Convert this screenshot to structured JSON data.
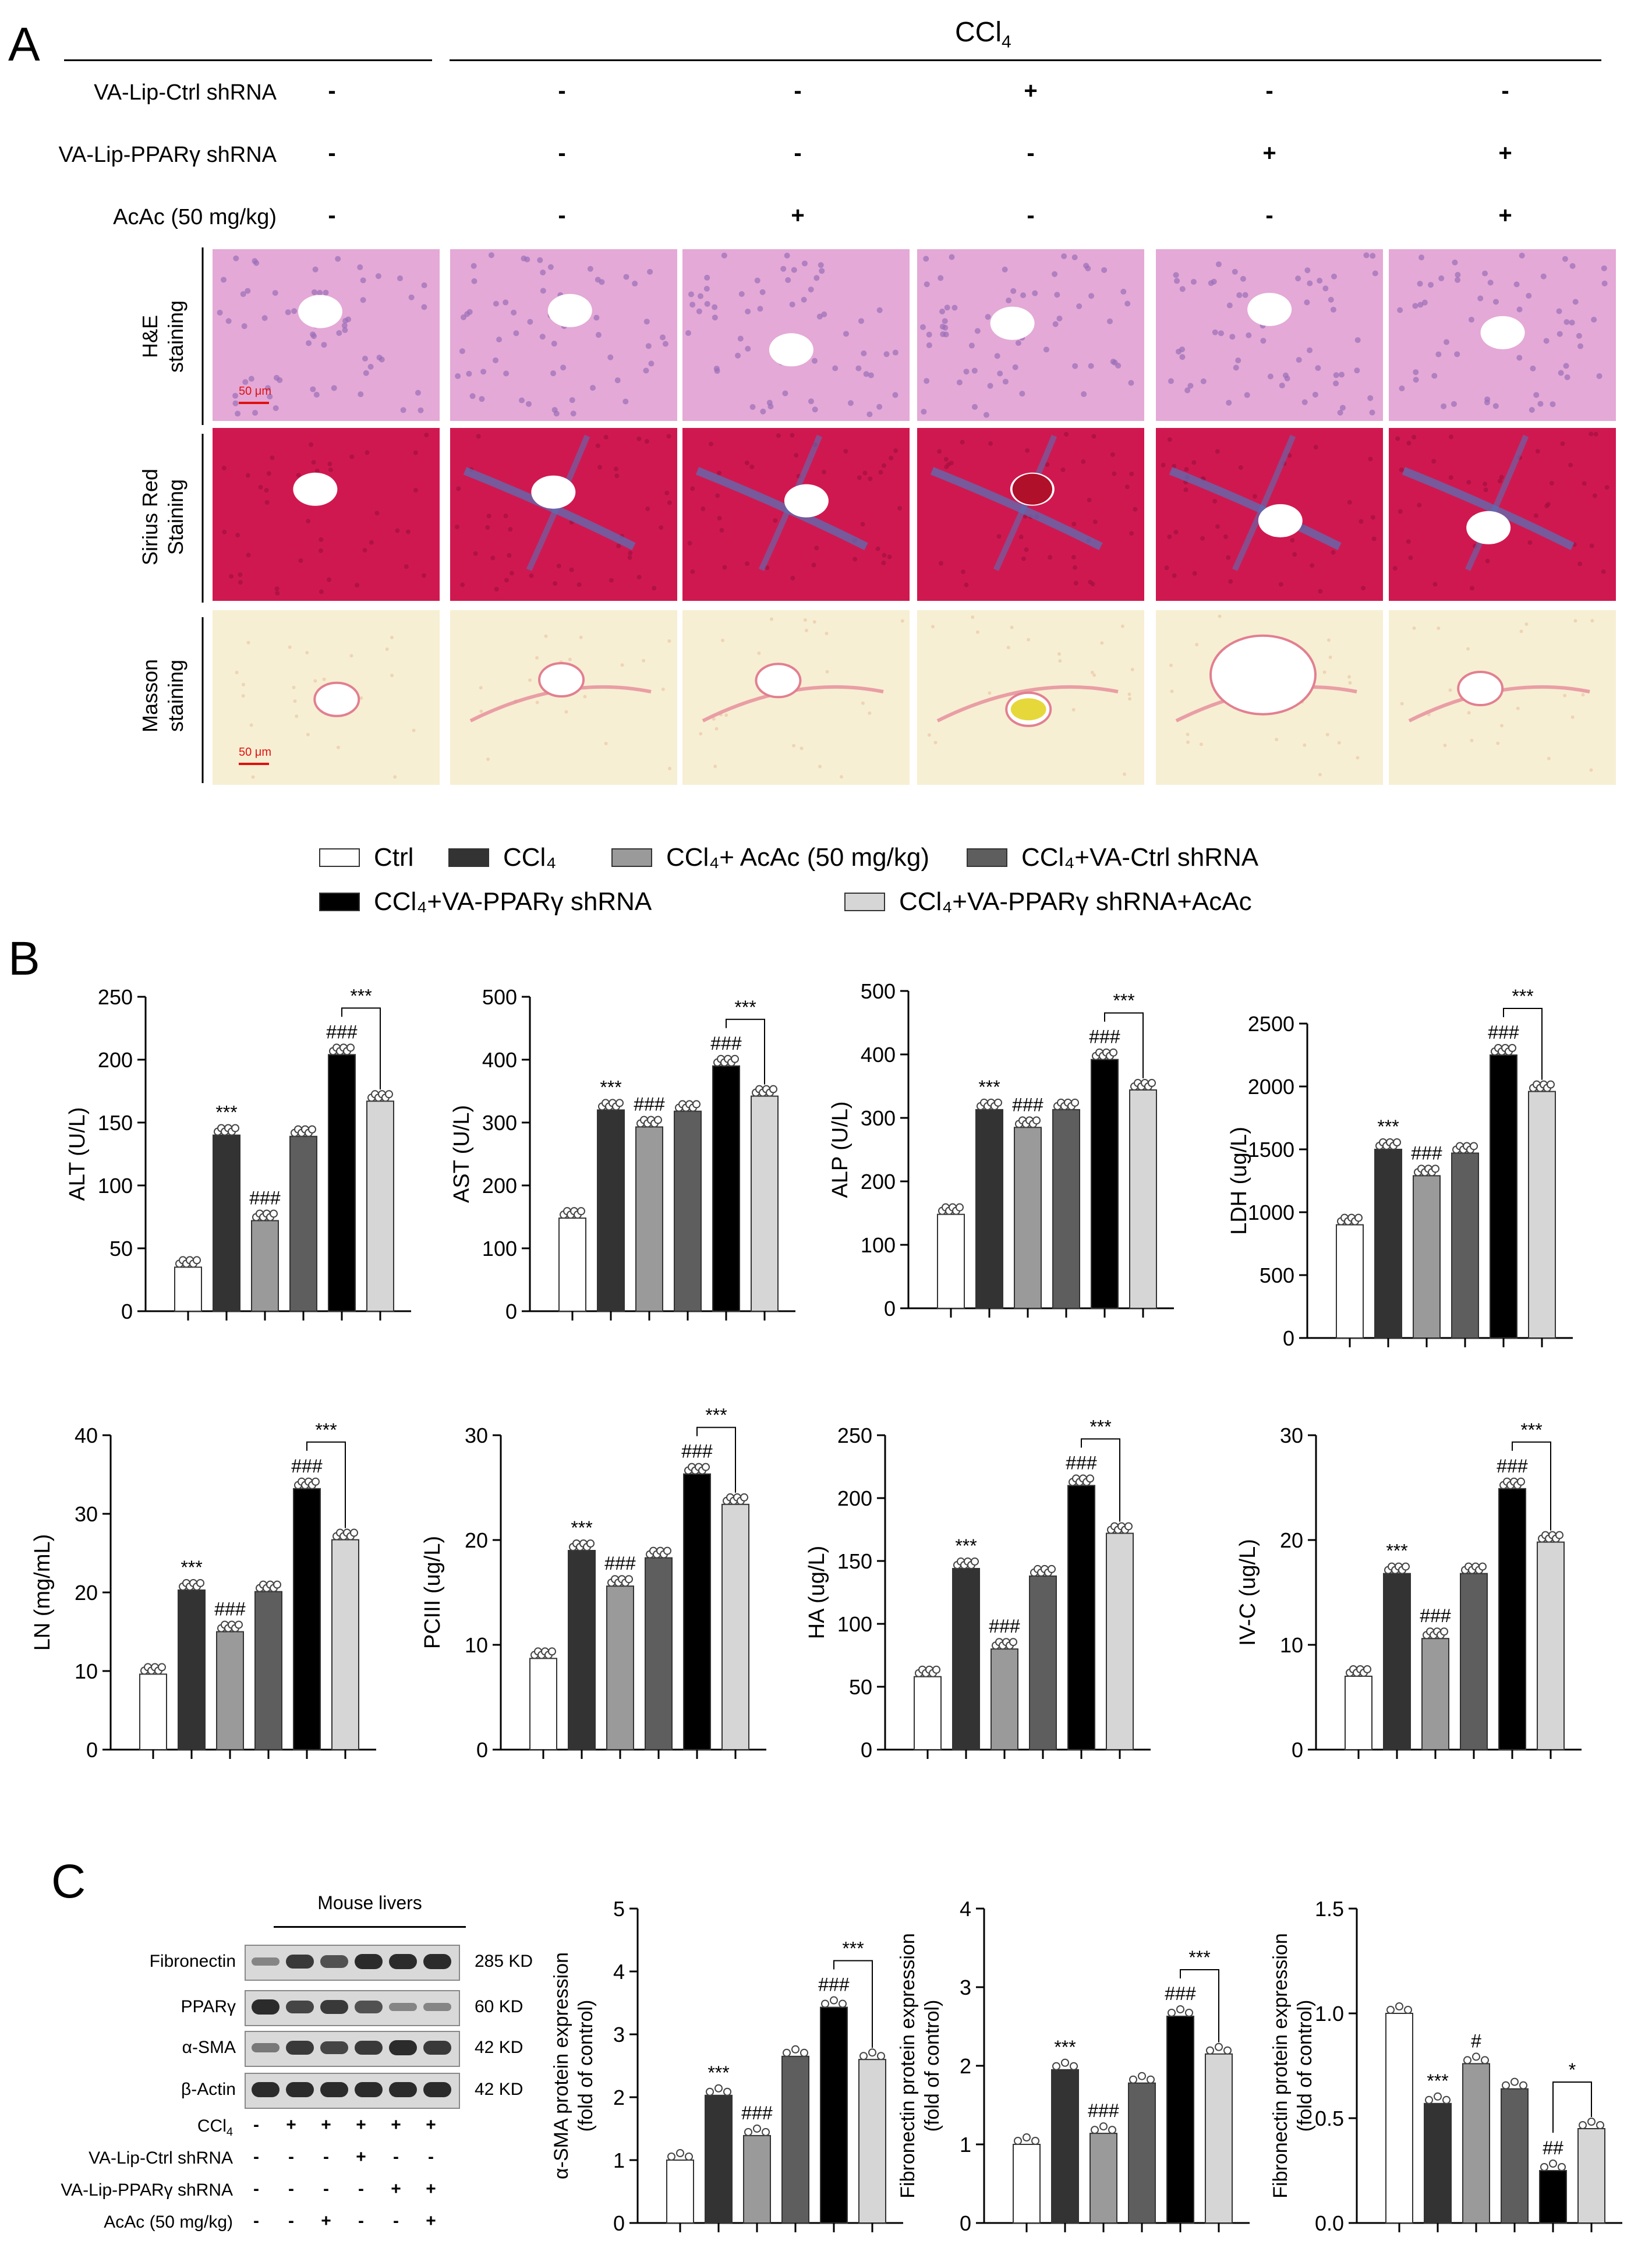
{
  "panel_labels": {
    "a": "A",
    "b": "B",
    "c": "C"
  },
  "panel_a": {
    "ccl4_header": "CCl",
    "ccl4_sub": "4",
    "rows": [
      {
        "label": "VA-Lip-Ctrl shRNA",
        "signs": [
          "-",
          "-",
          "-",
          "+",
          "-",
          "-"
        ]
      },
      {
        "label": "VA-Lip-PPARγ shRNA",
        "signs": [
          "-",
          "-",
          "-",
          "-",
          "+",
          "+"
        ]
      },
      {
        "label": "AcAc (50 mg/kg)",
        "signs": [
          "-",
          "-",
          "+",
          "-",
          "-",
          "+"
        ]
      }
    ],
    "stain_labels": [
      {
        "line1": "H&E",
        "line2": "staining"
      },
      {
        "line1": "Sirius Red",
        "line2": "Staining"
      },
      {
        "line1": "Masson",
        "line2": "staining"
      }
    ],
    "scale_bar": "50 μm",
    "colors": {
      "he": "#e4a9d6",
      "sirius": "#d01850",
      "masson": "#f7efd3",
      "fibrosis_blue": "#5a6fb5"
    }
  },
  "legend": {
    "items": [
      {
        "label": "Ctrl",
        "color": "#ffffff"
      },
      {
        "label": "CCl₄",
        "color": "#333333"
      },
      {
        "label": "CCl₄+ AcAc (50 mg/kg)",
        "color": "#9a9a9a"
      },
      {
        "label": "CCl₄+VA-Ctrl shRNA",
        "color": "#5e5e5e"
      },
      {
        "label": "CCl₄+VA-PPARγ shRNA",
        "color": "#000000"
      },
      {
        "label": "CCl₄+VA-PPARγ shRNA+AcAc",
        "color": "#d6d6d6"
      }
    ]
  },
  "chart_data": [
    {
      "type": "bar",
      "ylabel": "ALT (U/L)",
      "ylim": [
        0,
        250
      ],
      "ticks": [
        0,
        50,
        100,
        150,
        200,
        250
      ],
      "values": [
        35,
        140,
        72,
        139,
        204,
        167
      ],
      "marks": [
        "",
        "***",
        "###",
        "",
        "###",
        ""
      ],
      "bracket": "***"
    },
    {
      "type": "bar",
      "ylabel": "AST (U/L)",
      "ylim": [
        0,
        500
      ],
      "ticks": [
        0,
        100,
        200,
        300,
        400,
        500
      ],
      "values": [
        148,
        320,
        293,
        318,
        390,
        342
      ],
      "marks": [
        "",
        "***",
        "###",
        "",
        "###",
        ""
      ],
      "bracket": "***"
    },
    {
      "type": "bar",
      "ylabel": "ALP (U/L)",
      "ylim": [
        0,
        500
      ],
      "ticks": [
        0,
        100,
        200,
        300,
        400,
        500
      ],
      "values": [
        148,
        313,
        285,
        313,
        392,
        344
      ],
      "marks": [
        "",
        "***",
        "###",
        "",
        "###",
        ""
      ],
      "bracket": "***"
    },
    {
      "type": "bar",
      "ylabel": "LDH (ug/L)",
      "ylim": [
        0,
        2500
      ],
      "ticks": [
        0,
        500,
        1000,
        1500,
        2000,
        2500
      ],
      "values": [
        900,
        1500,
        1290,
        1470,
        2250,
        1960
      ],
      "marks": [
        "",
        "***",
        "###",
        "",
        "###",
        ""
      ],
      "bracket": "***"
    },
    {
      "type": "bar",
      "ylabel": "LN (mg/mL)",
      "ylim": [
        0,
        40
      ],
      "ticks": [
        0,
        10,
        20,
        30,
        40
      ],
      "values": [
        9.6,
        20.3,
        15.0,
        20.1,
        33.2,
        26.7
      ],
      "marks": [
        "",
        "***",
        "###",
        "",
        "###",
        ""
      ],
      "bracket": "***"
    },
    {
      "type": "bar",
      "ylabel": "PCIII (ug/L)",
      "ylim": [
        0,
        30
      ],
      "ticks": [
        0,
        10,
        20,
        30
      ],
      "values": [
        8.7,
        19.0,
        15.6,
        18.3,
        26.3,
        23.4
      ],
      "marks": [
        "",
        "***",
        "###",
        "",
        "###",
        ""
      ],
      "bracket": "***"
    },
    {
      "type": "bar",
      "ylabel": "HA (ug/L)",
      "ylim": [
        0,
        250
      ],
      "ticks": [
        0,
        50,
        100,
        150,
        200,
        250
      ],
      "values": [
        58,
        144,
        80,
        138,
        210,
        172
      ],
      "marks": [
        "",
        "***",
        "###",
        "",
        "###",
        ""
      ],
      "bracket": "***"
    },
    {
      "type": "bar",
      "ylabel": "IV-C (ug/L)",
      "ylim": [
        0,
        30
      ],
      "ticks": [
        0,
        10,
        20,
        30
      ],
      "values": [
        7.0,
        16.8,
        10.6,
        16.8,
        24.9,
        19.8
      ],
      "marks": [
        "",
        "***",
        "###",
        "",
        "###",
        ""
      ],
      "bracket": "***"
    },
    {
      "type": "bar",
      "ylabel": "α-SMA  protein  expression",
      "ylabel2": "(fold of control)",
      "ylim": [
        0,
        5
      ],
      "ticks": [
        0,
        1,
        2,
        3,
        4,
        5
      ],
      "values": [
        1.0,
        2.03,
        1.39,
        2.65,
        3.43,
        2.6
      ],
      "marks": [
        "",
        "***",
        "###",
        "",
        "###",
        ""
      ],
      "bracket": "***"
    },
    {
      "type": "bar",
      "ylabel": "Fibronectin protein expression",
      "ylabel2": "(fold of control)",
      "ylim": [
        0,
        4
      ],
      "ticks": [
        0,
        1,
        2,
        3,
        4
      ],
      "values": [
        1.0,
        1.95,
        1.14,
        1.78,
        2.63,
        2.15
      ],
      "marks": [
        "",
        "***",
        "###",
        "",
        "###",
        ""
      ],
      "bracket": "***"
    },
    {
      "type": "bar",
      "ylabel": "Fibronectin protein expression",
      "ylabel2": "(fold of control)",
      "ylim": [
        0,
        1.5
      ],
      "ticks": [
        "0.0",
        "0.5",
        "1.0",
        "1.5"
      ],
      "values": [
        1.0,
        0.57,
        0.76,
        0.64,
        0.25,
        0.45
      ],
      "marks": [
        "",
        "***",
        "#",
        "",
        "##",
        ""
      ],
      "bracket": "*"
    }
  ],
  "western": {
    "title": "Mouse livers",
    "proteins": [
      {
        "name": "Fibronectin",
        "kd": "285 KD"
      },
      {
        "name": "PPARγ",
        "kd": "60 KD"
      },
      {
        "name": "α-SMA",
        "kd": "42 KD"
      },
      {
        "name": "β-Actin",
        "kd": "42 KD"
      }
    ],
    "conditions": [
      {
        "label": "CCl",
        "sub": "4",
        "signs": [
          "-",
          "+",
          "+",
          "+",
          "+",
          "+"
        ]
      },
      {
        "label": "VA-Lip-Ctrl shRNA",
        "sub": "",
        "signs": [
          "-",
          "-",
          "-",
          "+",
          "-",
          "-"
        ]
      },
      {
        "label": "VA-Lip-PPARγ shRNA",
        "sub": "",
        "signs": [
          "-",
          "-",
          "-",
          "-",
          "+",
          "+"
        ]
      },
      {
        "label": "AcAc (50 mg/kg)",
        "sub": "",
        "signs": [
          "-",
          "-",
          "+",
          "-",
          "-",
          "+"
        ]
      }
    ]
  }
}
